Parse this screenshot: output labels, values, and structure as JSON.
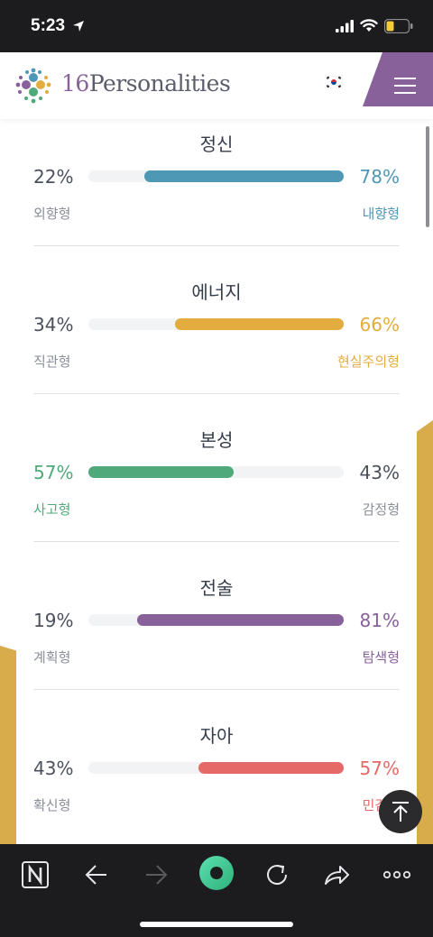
{
  "status_bar": {
    "time": "5:23"
  },
  "brand": {
    "logo_number": "16",
    "logo_word": "Personalities"
  },
  "colors": {
    "mind": "#4f98b5",
    "energy": "#e2ac3f",
    "nature": "#4fa97a",
    "tactics": "#88619a",
    "identity": "#e56a67",
    "gold": "#d8ab4b",
    "purple": "#88619a"
  },
  "traits": [
    {
      "title": "정신",
      "left_pct": "22%",
      "right_pct": "78%",
      "left_label": "외향형",
      "right_label": "내향형",
      "fill_side": "right",
      "fill_fraction": 0.78
    },
    {
      "title": "에너지",
      "left_pct": "34%",
      "right_pct": "66%",
      "left_label": "직관형",
      "right_label": "현실주의형",
      "fill_side": "right",
      "fill_fraction": 0.66
    },
    {
      "title": "본성",
      "left_pct": "57%",
      "right_pct": "43%",
      "left_label": "사고형",
      "right_label": "감정형",
      "fill_side": "left",
      "fill_fraction": 0.57
    },
    {
      "title": "전술",
      "left_pct": "19%",
      "right_pct": "81%",
      "left_label": "계획형",
      "right_label": "탐색형",
      "fill_side": "right",
      "fill_fraction": 0.81
    },
    {
      "title": "자아",
      "left_pct": "43%",
      "right_pct": "57%",
      "left_label": "확신형",
      "right_label": "민감형",
      "fill_side": "right",
      "fill_fraction": 0.57
    }
  ],
  "icons": {
    "toolbar": [
      "notion-icon",
      "back-arrow-icon",
      "forward-arrow-icon",
      "home-circle-icon",
      "reload-icon",
      "share-icon",
      "more-icon"
    ]
  }
}
